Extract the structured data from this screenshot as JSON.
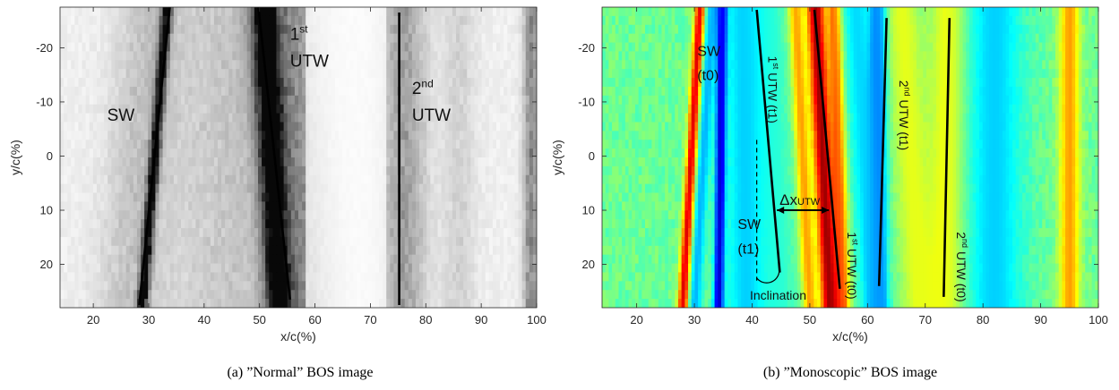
{
  "chart_data": [
    {
      "type": "heatmap",
      "caption": "(a) ”Normal” BOS image",
      "xlabel": "x/c(%)",
      "ylabel": "y/c(%)",
      "xlim": [
        14,
        100
      ],
      "ylim": [
        -27.5,
        28
      ],
      "y_reversed": true,
      "xticks": [
        20,
        30,
        40,
        50,
        60,
        70,
        80,
        90,
        100
      ],
      "yticks": [
        -20,
        -10,
        0,
        10,
        20
      ],
      "colormap": "gray",
      "colormap_colors": [
        "#ffffff",
        "#000000"
      ],
      "lines": [
        {
          "name": "SW",
          "x": [
            33.8,
            28.3
          ],
          "y": [
            -27.5,
            27.5
          ],
          "dash": false
        },
        {
          "name": "1st UTW",
          "x": [
            49.8,
            55.5
          ],
          "y": [
            -27.5,
            26.5
          ],
          "dash": false
        },
        {
          "name": "2nd UTW",
          "x": [
            75.2,
            75.2
          ],
          "y": [
            -26.5,
            27.5
          ],
          "dash": false
        }
      ],
      "annotations": [
        {
          "text": "SW",
          "x": 22.5,
          "y": -6.5
        },
        {
          "text": "1",
          "sup": "st",
          "x": 55.5,
          "y": -21.5
        },
        {
          "text": "UTW",
          "x": 55.5,
          "y": -16.5
        },
        {
          "text": "2",
          "sup": "nd",
          "x": 77.5,
          "y": -11.5
        },
        {
          "text": "UTW",
          "x": 77.5,
          "y": -6.5
        }
      ],
      "bands": [
        {
          "center_top": 33.3,
          "center_bottom": 28.8,
          "width": 0.9,
          "intensity": 0.95
        },
        {
          "center_top": 30.5,
          "center_bottom": 26.5,
          "width": 6,
          "intensity": 0.18
        },
        {
          "center_top": 50.8,
          "center_bottom": 53.5,
          "width": 2.2,
          "intensity": 0.9
        },
        {
          "center_top": 54,
          "center_bottom": 57.5,
          "width": 6,
          "intensity": 0.4
        },
        {
          "center_top": 44,
          "center_bottom": 44,
          "width": 10,
          "intensity": 0.16
        },
        {
          "center_top": 76,
          "center_bottom": 76,
          "width": 4,
          "intensity": 0.32
        },
        {
          "center_top": 86,
          "center_bottom": 86,
          "width": 3,
          "intensity": 0.12
        },
        {
          "center_top": 99,
          "center_bottom": 99,
          "width": 1.4,
          "intensity": 0.42
        }
      ]
    },
    {
      "type": "heatmap",
      "caption": "(b) ”Monoscopic” BOS image",
      "xlabel": "x/c(%)",
      "ylabel": "y/c(%)",
      "xlim": [
        14,
        100
      ],
      "ylim": [
        -27.5,
        28
      ],
      "y_reversed": true,
      "xticks": [
        20,
        30,
        40,
        50,
        60,
        70,
        80,
        90,
        100
      ],
      "yticks": [
        -20,
        -10,
        0,
        10,
        20
      ],
      "colormap": "jet",
      "colormap_colors": [
        "#00007f",
        "#0000ff",
        "#0080ff",
        "#00ffff",
        "#7fff7f",
        "#ffff00",
        "#ff8000",
        "#ff0000",
        "#7f0000"
      ],
      "background_level": 0.48,
      "lines": [
        {
          "name": "1st UTW (t1)",
          "x": [
            40.8,
            44.8
          ],
          "y": [
            -27,
            21.5
          ],
          "dash": false
        },
        {
          "name": "1st UTW (t0)",
          "x": [
            50.8,
            55.2
          ],
          "y": [
            -27,
            24.5
          ],
          "dash": false
        },
        {
          "name": "2nd UTW (t1)",
          "x": [
            63.3,
            62.0
          ],
          "y": [
            -25.5,
            24
          ],
          "dash": false
        },
        {
          "name": "2nd UTW (t0)",
          "x": [
            74.2,
            73.2
          ],
          "y": [
            -25.5,
            26
          ],
          "dash": false
        },
        {
          "name": "vertical reference",
          "x": [
            40.8,
            40.8
          ],
          "y": [
            -3,
            23
          ],
          "dash": true
        }
      ],
      "arrows": [
        {
          "text": "Δx",
          "sub": "UTW",
          "x0": 44.3,
          "x1": 53.3,
          "y": 10
        }
      ],
      "annotations": [
        {
          "text": "SW",
          "x": 30.5,
          "y": -18.5
        },
        {
          "text": "(t0)",
          "x": 30.5,
          "y": -14
        },
        {
          "text": "SW",
          "x": 37.5,
          "y": 13.5
        },
        {
          "text": "(t1)",
          "x": 37.5,
          "y": 18
        },
        {
          "text": "Inclination",
          "x": 44.5,
          "y": 26.5
        },
        {
          "text": "1",
          "sup": "st",
          "rest": " UTW (t1)",
          "x": 42.8,
          "y": -18.5,
          "rotate": 90
        },
        {
          "text": "1",
          "sup": "st",
          "rest": " UTW (t0)",
          "x": 56.5,
          "y": 14,
          "rotate": 90
        },
        {
          "text": "2",
          "sup": "nd",
          "rest": " UTW (t1)",
          "x": 65.5,
          "y": -14,
          "rotate": 90
        },
        {
          "text": "2",
          "sup": "nd",
          "rest": " UTW (t0)",
          "x": 75.5,
          "y": 14,
          "rotate": 90
        }
      ],
      "bands": [
        {
          "center_top": 31,
          "center_bottom": 28,
          "width": 0.9,
          "level": 0.93
        },
        {
          "center_top": 33,
          "center_bottom": 30,
          "width": 1.2,
          "level": 0.3
        },
        {
          "center_top": 34.8,
          "center_bottom": 34.2,
          "width": 0.8,
          "level": 0.04
        },
        {
          "center_top": 38.5,
          "center_bottom": 39,
          "width": 3.5,
          "level": 0.33
        },
        {
          "center_top": 43,
          "center_bottom": 45,
          "width": 2.5,
          "level": 0.42
        },
        {
          "center_top": 47.5,
          "center_bottom": 50,
          "width": 1.2,
          "level": 0.72
        },
        {
          "center_top": 51,
          "center_bottom": 53.5,
          "width": 1.6,
          "level": 0.97
        },
        {
          "center_top": 54.2,
          "center_bottom": 55.8,
          "width": 1.2,
          "level": 0.78
        },
        {
          "center_top": 58,
          "center_bottom": 61,
          "width": 2.5,
          "level": 0.34
        },
        {
          "center_top": 61.8,
          "center_bottom": 61.8,
          "width": 1.4,
          "level": 0.22
        },
        {
          "center_top": 66,
          "center_bottom": 69,
          "width": 3,
          "level": 0.6
        },
        {
          "center_top": 74,
          "center_bottom": 73.5,
          "width": 3,
          "level": 0.62
        },
        {
          "center_top": 82,
          "center_bottom": 82,
          "width": 5,
          "level": 0.33
        },
        {
          "center_top": 95,
          "center_bottom": 95,
          "width": 1.8,
          "level": 0.72
        }
      ]
    }
  ]
}
